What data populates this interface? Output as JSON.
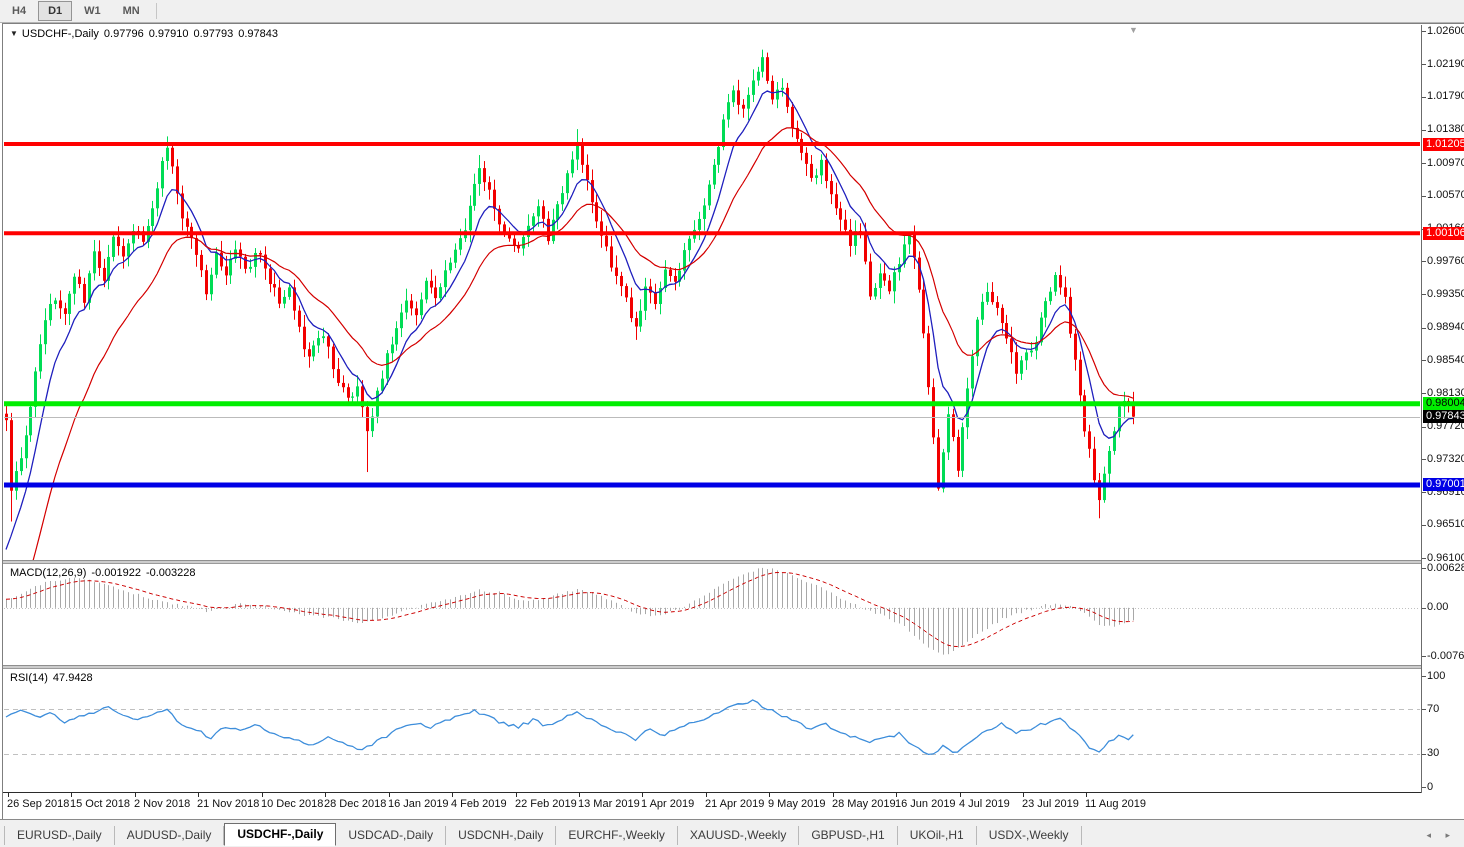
{
  "toolbar": {
    "timeframes": [
      {
        "label": "H4",
        "active": false
      },
      {
        "label": "D1",
        "active": true
      },
      {
        "label": "W1",
        "active": false
      },
      {
        "label": "MN",
        "active": false
      }
    ]
  },
  "title": {
    "dropdown_icon": "▼",
    "symbol": "USDCHF-,Daily",
    "open": "0.97796",
    "high": "0.97910",
    "low": "0.97793",
    "close": "0.97843"
  },
  "shift_marker_icon": "▼",
  "tab_bar": {
    "tabs": [
      "EURUSD-,Daily",
      "AUDUSD-,Daily",
      "USDCHF-,Daily",
      "USDCAD-,Daily",
      "USDCNH-,Daily",
      "EURCHF-,Weekly",
      "XAUUSD-,Weekly",
      "GBPUSD-,H1",
      "UKOil-,H1",
      "USDX-,Weekly"
    ],
    "active_index": 2,
    "scroll_icons": "◂ ▸"
  },
  "chart_data": {
    "type": "candlestick",
    "symbol": "USDCHF-",
    "timeframe": "Daily",
    "current_bar": {
      "open": 0.97796,
      "high": 0.9791,
      "low": 0.97793,
      "close": 0.97843
    },
    "colors": {
      "up": "#00DC55",
      "down": "#F20000",
      "ma_fast": "#2020BE",
      "ma_slow": "#D40000",
      "hist": "#A8A8A8",
      "signal": "#CC0000",
      "rsi": "#3E8EDB",
      "grid_dash": "#C0C0C0",
      "res_line": "#FF0000",
      "sup_green": "#00EE00",
      "sup_blue": "#0000E6",
      "bid_line": "#BBBBBB"
    },
    "price_axis": {
      "min": 0.961,
      "max": 1.026,
      "labels": [
        {
          "text": "1.02600",
          "p": 1.026
        },
        {
          "text": "1.02190",
          "p": 1.0219
        },
        {
          "text": "1.01790",
          "p": 1.0179
        },
        {
          "text": "1.01380",
          "p": 1.0138
        },
        {
          "text": "1.00970",
          "p": 1.0097
        },
        {
          "text": "1.00570",
          "p": 1.0057
        },
        {
          "text": "1.00160",
          "p": 1.0016
        },
        {
          "text": "0.99760",
          "p": 0.9976
        },
        {
          "text": "0.99350",
          "p": 0.9935
        },
        {
          "text": "0.98940",
          "p": 0.9894
        },
        {
          "text": "0.98540",
          "p": 0.9854
        },
        {
          "text": "0.98130",
          "p": 0.9813
        },
        {
          "text": "0.97720",
          "p": 0.9772
        },
        {
          "text": "0.97320",
          "p": 0.9732
        },
        {
          "text": "0.96910",
          "p": 0.9691
        },
        {
          "text": "0.96510",
          "p": 0.9651
        },
        {
          "text": "0.96100",
          "p": 0.961
        }
      ]
    },
    "x_axis": {
      "candles_per_label": 13,
      "labels": [
        "26 Sep 2018",
        "15 Oct 2018",
        "2 Nov 2018",
        "21 Nov 2018",
        "10 Dec 2018",
        "28 Dec 2018",
        "16 Jan 2019",
        "4 Feb 2019",
        "22 Feb 2019",
        "13 Mar 2019",
        "1 Apr 2019",
        "21 Apr 2019",
        "9 May 2019",
        "28 May 2019",
        "16 Jun 2019",
        "4 Jul 2019",
        "23 Jul 2019",
        "11 Aug 2019"
      ]
    },
    "hlines": [
      {
        "price": 1.01205,
        "label": "1.01205",
        "color": "#FF0000",
        "width": 4,
        "label_bg": "#FF0000",
        "label_fg": "#FFFFFF"
      },
      {
        "price": 1.00106,
        "label": "1.00106",
        "color": "#FF0000",
        "width": 4,
        "label_bg": "#FF0000",
        "label_fg": "#FFFFFF"
      },
      {
        "price": 0.98004,
        "label": "0.98004",
        "color": "#00EE00",
        "width": 5,
        "label_bg": "#00EE00",
        "label_fg": "#000000"
      },
      {
        "price": 0.97001,
        "label": "0.97001",
        "color": "#0000E6",
        "width": 5,
        "label_bg": "#0000E6",
        "label_fg": "#FFFFFF"
      }
    ],
    "bid_line": {
      "price": 0.97843,
      "label": "0.97843",
      "label_bg": "#000000",
      "label_fg": "#FFFFFF"
    },
    "candles": {
      "count": 232,
      "first_open": 0.9788,
      "close_anchors": [
        [
          0,
          0.978
        ],
        [
          1,
          0.9693
        ],
        [
          2,
          0.9712
        ],
        [
          4,
          0.9758
        ],
        [
          6,
          0.9846
        ],
        [
          8,
          0.9906
        ],
        [
          10,
          0.9934
        ],
        [
          12,
          0.9906
        ],
        [
          14,
          0.9961
        ],
        [
          16,
          0.9931
        ],
        [
          18,
          0.9984
        ],
        [
          20,
          0.9957
        ],
        [
          22,
          1.0004
        ],
        [
          24,
          0.9981
        ],
        [
          26,
          1.0017
        ],
        [
          28,
          1.0001
        ],
        [
          30,
          1.0047
        ],
        [
          33,
          1.0121
        ],
        [
          35,
          1.0057
        ],
        [
          37,
          1.0012
        ],
        [
          39,
          0.9987
        ],
        [
          41,
          0.9936
        ],
        [
          43,
          0.9981
        ],
        [
          45,
          0.9957
        ],
        [
          47,
          0.9991
        ],
        [
          49,
          0.9967
        ],
        [
          52,
          0.9987
        ],
        [
          54,
          0.9951
        ],
        [
          56,
          0.9926
        ],
        [
          58,
          0.9944
        ],
        [
          60,
          0.9891
        ],
        [
          62,
          0.9857
        ],
        [
          64,
          0.9887
        ],
        [
          66,
          0.9867
        ],
        [
          68,
          0.9831
        ],
        [
          70,
          0.9807
        ],
        [
          72,
          0.9817
        ],
        [
          74,
          0.9763
        ],
        [
          76,
          0.9817
        ],
        [
          78,
          0.9857
        ],
        [
          80,
          0.9894
        ],
        [
          82,
          0.9927
        ],
        [
          84,
          0.9911
        ],
        [
          86,
          0.9949
        ],
        [
          88,
          0.9934
        ],
        [
          90,
          0.9961
        ],
        [
          93,
          0.9999
        ],
        [
          95,
          1.0041
        ],
        [
          97,
          1.0091
        ],
        [
          99,
          1.0067
        ],
        [
          101,
          1.0027
        ],
        [
          103,
          1.0001
        ],
        [
          105,
          0.9991
        ],
        [
          107,
          1.0021
        ],
        [
          109,
          1.0047
        ],
        [
          111,
          1.0004
        ],
        [
          113,
          1.0041
        ],
        [
          115,
          1.0087
        ],
        [
          117,
          1.0119
        ],
        [
          119,
          1.0077
        ],
        [
          121,
          1.0031
        ],
        [
          123,
          0.9991
        ],
        [
          125,
          0.9957
        ],
        [
          127,
          0.9927
        ],
        [
          129,
          0.9895
        ],
        [
          131,
          0.9944
        ],
        [
          133,
          0.9921
        ],
        [
          135,
          0.9961
        ],
        [
          137,
          0.9947
        ],
        [
          139,
          0.9987
        ],
        [
          141,
          1.0011
        ],
        [
          143,
          1.0047
        ],
        [
          145,
          1.0091
        ],
        [
          147,
          1.0151
        ],
        [
          149,
          1.0184
        ],
        [
          151,
          1.0161
        ],
        [
          153,
          1.0204
        ],
        [
          155,
          1.0226
        ],
        [
          157,
          1.0171
        ],
        [
          159,
          1.0194
        ],
        [
          161,
          1.0141
        ],
        [
          163,
          1.0104
        ],
        [
          165,
          1.0077
        ],
        [
          167,
          1.0097
        ],
        [
          169,
          1.0057
        ],
        [
          171,
          1.0021
        ],
        [
          173,
          1.0001
        ],
        [
          175,
          1.0014
        ],
        [
          177,
          0.9931
        ],
        [
          179,
          0.9957
        ],
        [
          181,
          0.9941
        ],
        [
          183,
          0.9974
        ],
        [
          185,
          1.0007
        ],
        [
          187,
          0.9947
        ],
        [
          189,
          0.9817
        ],
        [
          191,
          0.9701
        ],
        [
          193,
          0.9787
        ],
        [
          195,
          0.9724
        ],
        [
          197,
          0.9817
        ],
        [
          199,
          0.9904
        ],
        [
          201,
          0.9937
        ],
        [
          203,
          0.9914
        ],
        [
          205,
          0.9877
        ],
        [
          207,
          0.9841
        ],
        [
          209,
          0.9861
        ],
        [
          211,
          0.9881
        ],
        [
          213,
          0.9924
        ],
        [
          215,
          0.9957
        ],
        [
          217,
          0.9931
        ],
        [
          219,
          0.9854
        ],
        [
          221,
          0.9771
        ],
        [
          223,
          0.9711
        ],
        [
          224,
          0.9681
        ],
        [
          225,
          0.9717
        ],
        [
          226,
          0.9747
        ],
        [
          227,
          0.9771
        ],
        [
          228,
          0.9794
        ],
        [
          229,
          0.9807
        ],
        [
          230,
          0.9799
        ],
        [
          231,
          0.97843
        ]
      ],
      "wick_extremes": [
        [
          1,
          "low",
          0.9655
        ],
        [
          33,
          "high",
          1.013
        ],
        [
          74,
          "low",
          0.9716
        ],
        [
          97,
          "high",
          1.0107
        ],
        [
          117,
          "high",
          1.0139
        ],
        [
          129,
          "low",
          0.9879
        ],
        [
          155,
          "high",
          1.0237
        ],
        [
          185,
          "high",
          1.0012
        ],
        [
          191,
          "low",
          0.9693
        ],
        [
          195,
          "low",
          0.971
        ],
        [
          224,
          "low",
          0.9659
        ],
        [
          229,
          "high",
          0.9815
        ]
      ]
    },
    "moving_averages": [
      {
        "name": "fast",
        "period": 8,
        "seed": 0.9575
      },
      {
        "name": "slow",
        "period": 21,
        "seed": 0.9475
      }
    ],
    "macd": {
      "label": "MACD(12,26,9)",
      "value_main": "-0.001922",
      "value_signal": "-0.003228",
      "axis_labels": [
        {
          "text": "0.006286",
          "v": 0.006286
        },
        {
          "text": "0.00",
          "v": 0
        },
        {
          "text": "-0.00762",
          "v": -0.00762
        }
      ],
      "signal_period": 9,
      "anchors": [
        [
          0,
          0.0012
        ],
        [
          4,
          0.0028
        ],
        [
          8,
          0.004
        ],
        [
          13,
          0.0047
        ],
        [
          17,
          0.0044
        ],
        [
          21,
          0.0036
        ],
        [
          25,
          0.0026
        ],
        [
          29,
          0.0015
        ],
        [
          33,
          0.0008
        ],
        [
          37,
          0.0002
        ],
        [
          41,
          -0.0005
        ],
        [
          45,
          0.0001
        ],
        [
          49,
          0.0007
        ],
        [
          53,
          0.0003
        ],
        [
          57,
          -0.0004
        ],
        [
          61,
          -0.0011
        ],
        [
          65,
          -0.0014
        ],
        [
          69,
          -0.0019
        ],
        [
          73,
          -0.0025
        ],
        [
          77,
          -0.0017
        ],
        [
          81,
          -0.0007
        ],
        [
          85,
          0.0004
        ],
        [
          89,
          0.0011
        ],
        [
          93,
          0.0019
        ],
        [
          97,
          0.0028
        ],
        [
          101,
          0.0024
        ],
        [
          105,
          0.0013
        ],
        [
          109,
          0.0012
        ],
        [
          113,
          0.0021
        ],
        [
          117,
          0.0029
        ],
        [
          121,
          0.0021
        ],
        [
          125,
          0.0007
        ],
        [
          129,
          -0.0009
        ],
        [
          133,
          -0.0012
        ],
        [
          137,
          -0.0005
        ],
        [
          141,
          0.001
        ],
        [
          145,
          0.0028
        ],
        [
          149,
          0.0047
        ],
        [
          153,
          0.0059
        ],
        [
          156,
          0.0063
        ],
        [
          160,
          0.0054
        ],
        [
          164,
          0.0041
        ],
        [
          168,
          0.0028
        ],
        [
          172,
          0.0011
        ],
        [
          176,
          -0.0003
        ],
        [
          180,
          -0.0013
        ],
        [
          184,
          -0.003
        ],
        [
          188,
          -0.0056
        ],
        [
          192,
          -0.0076
        ],
        [
          196,
          -0.0058
        ],
        [
          200,
          -0.0037
        ],
        [
          204,
          -0.0018
        ],
        [
          208,
          -0.0007
        ],
        [
          212,
          0.0003
        ],
        [
          215,
          0.0007
        ],
        [
          218,
          0.0003
        ],
        [
          221,
          -0.001
        ],
        [
          224,
          -0.0026
        ],
        [
          227,
          -0.0031
        ],
        [
          229,
          -0.0026
        ],
        [
          231,
          -0.0019
        ]
      ]
    },
    "rsi": {
      "label": "RSI(14)",
      "value": "47.9428",
      "axis_labels": [
        {
          "text": "100",
          "v": 100
        },
        {
          "text": "70",
          "v": 70
        },
        {
          "text": "30",
          "v": 30
        },
        {
          "text": "0",
          "v": 0
        }
      ],
      "levels": [
        70,
        30
      ],
      "anchors": [
        [
          0,
          63
        ],
        [
          3,
          68
        ],
        [
          6,
          63
        ],
        [
          9,
          67
        ],
        [
          12,
          59
        ],
        [
          15,
          64
        ],
        [
          18,
          67
        ],
        [
          21,
          71
        ],
        [
          24,
          64
        ],
        [
          27,
          60
        ],
        [
          30,
          66
        ],
        [
          33,
          69
        ],
        [
          36,
          57
        ],
        [
          39,
          51
        ],
        [
          42,
          45
        ],
        [
          45,
          55
        ],
        [
          48,
          51
        ],
        [
          51,
          56
        ],
        [
          54,
          49
        ],
        [
          57,
          45
        ],
        [
          60,
          41
        ],
        [
          63,
          37
        ],
        [
          66,
          44
        ],
        [
          69,
          39
        ],
        [
          72,
          33
        ],
        [
          75,
          39
        ],
        [
          78,
          46
        ],
        [
          81,
          53
        ],
        [
          84,
          58
        ],
        [
          87,
          54
        ],
        [
          90,
          60
        ],
        [
          93,
          63
        ],
        [
          96,
          69
        ],
        [
          99,
          63
        ],
        [
          102,
          57
        ],
        [
          105,
          54
        ],
        [
          108,
          60
        ],
        [
          111,
          55
        ],
        [
          114,
          62
        ],
        [
          117,
          69
        ],
        [
          120,
          60
        ],
        [
          123,
          54
        ],
        [
          126,
          49
        ],
        [
          129,
          43
        ],
        [
          132,
          52
        ],
        [
          135,
          47
        ],
        [
          138,
          54
        ],
        [
          141,
          58
        ],
        [
          144,
          63
        ],
        [
          147,
          69
        ],
        [
          150,
          74
        ],
        [
          153,
          78
        ],
        [
          156,
          71
        ],
        [
          159,
          64
        ],
        [
          162,
          58
        ],
        [
          165,
          52
        ],
        [
          168,
          57
        ],
        [
          171,
          49
        ],
        [
          174,
          45
        ],
        [
          177,
          40
        ],
        [
          180,
          44
        ],
        [
          183,
          48
        ],
        [
          186,
          38
        ],
        [
          189,
          28
        ],
        [
          192,
          36
        ],
        [
          195,
          31
        ],
        [
          198,
          42
        ],
        [
          201,
          52
        ],
        [
          204,
          57
        ],
        [
          207,
          49
        ],
        [
          210,
          53
        ],
        [
          213,
          57
        ],
        [
          216,
          61
        ],
        [
          219,
          50
        ],
        [
          222,
          36
        ],
        [
          224,
          31
        ],
        [
          226,
          40
        ],
        [
          228,
          45
        ],
        [
          230,
          43
        ],
        [
          231,
          47.94
        ]
      ]
    }
  }
}
